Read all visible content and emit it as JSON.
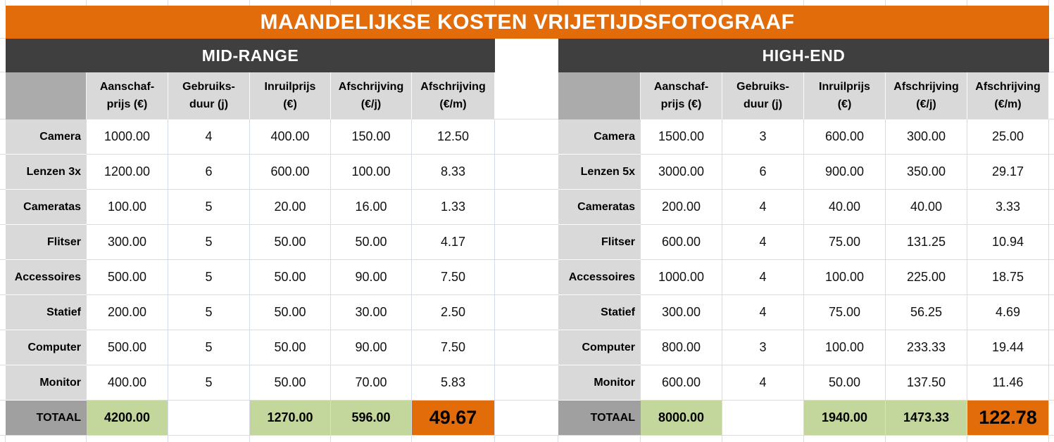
{
  "title": "MAANDELIJKSE KOSTEN VRIJETIJDSFOTOGRAAF",
  "colors": {
    "accent_orange": "#E26C0A",
    "section_dark": "#3F3F3F",
    "header_gray": "#D9D9D9",
    "corner_gray": "#ABABAB",
    "total_label_gray": "#A0A0A0",
    "total_green": "#C3D69B",
    "gridline": "#D5DBE7",
    "text_black": "#000000",
    "text_white": "#FFFFFF"
  },
  "column_headers": [
    "Aanschaf-\nprijs (€)",
    "Gebruiks-\nduur (j)",
    "Inruilprijs\n(€)",
    "Afschrijving\n(€/j)",
    "Afschrijving\n(€/m)"
  ],
  "tables": [
    {
      "name": "MID-RANGE",
      "rows": [
        {
          "label": "Camera",
          "values": [
            "1000.00",
            "4",
            "400.00",
            "150.00",
            "12.50"
          ]
        },
        {
          "label": "Lenzen 3x",
          "values": [
            "1200.00",
            "6",
            "600.00",
            "100.00",
            "8.33"
          ]
        },
        {
          "label": "Cameratas",
          "values": [
            "100.00",
            "5",
            "20.00",
            "16.00",
            "1.33"
          ]
        },
        {
          "label": "Flitser",
          "values": [
            "300.00",
            "5",
            "50.00",
            "50.00",
            "4.17"
          ]
        },
        {
          "label": "Accessoires",
          "values": [
            "500.00",
            "5",
            "50.00",
            "90.00",
            "7.50"
          ]
        },
        {
          "label": "Statief",
          "values": [
            "200.00",
            "5",
            "50.00",
            "30.00",
            "2.50"
          ]
        },
        {
          "label": "Computer",
          "values": [
            "500.00",
            "5",
            "50.00",
            "90.00",
            "7.50"
          ]
        },
        {
          "label": "Monitor",
          "values": [
            "400.00",
            "5",
            "50.00",
            "70.00",
            "5.83"
          ]
        }
      ],
      "total": {
        "label": "TOTAAL",
        "values": [
          "4200.00",
          "",
          "1270.00",
          "596.00",
          "49.67"
        ]
      }
    },
    {
      "name": "HIGH-END",
      "rows": [
        {
          "label": "Camera",
          "values": [
            "1500.00",
            "3",
            "600.00",
            "300.00",
            "25.00"
          ]
        },
        {
          "label": "Lenzen 5x",
          "values": [
            "3000.00",
            "6",
            "900.00",
            "350.00",
            "29.17"
          ]
        },
        {
          "label": "Cameratas",
          "values": [
            "200.00",
            "4",
            "40.00",
            "40.00",
            "3.33"
          ]
        },
        {
          "label": "Flitser",
          "values": [
            "600.00",
            "4",
            "75.00",
            "131.25",
            "10.94"
          ]
        },
        {
          "label": "Accessoires",
          "values": [
            "1000.00",
            "4",
            "100.00",
            "225.00",
            "18.75"
          ]
        },
        {
          "label": "Statief",
          "values": [
            "300.00",
            "4",
            "75.00",
            "56.25",
            "4.69"
          ]
        },
        {
          "label": "Computer",
          "values": [
            "800.00",
            "3",
            "100.00",
            "233.33",
            "19.44"
          ]
        },
        {
          "label": "Monitor",
          "values": [
            "600.00",
            "4",
            "50.00",
            "137.50",
            "11.46"
          ]
        }
      ],
      "total": {
        "label": "TOTAAL",
        "values": [
          "8000.00",
          "",
          "1940.00",
          "1473.33",
          "122.78"
        ]
      }
    }
  ]
}
